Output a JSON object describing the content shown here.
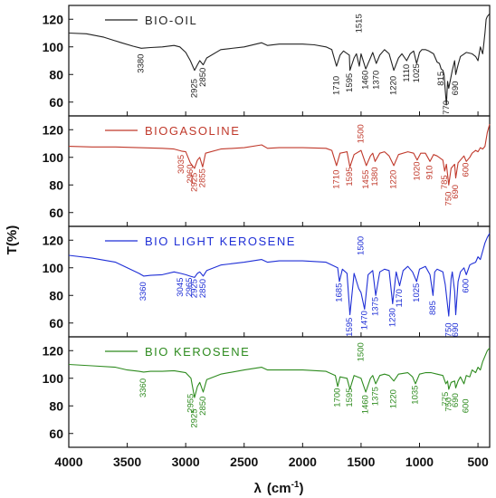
{
  "chart_data": {
    "type": "line",
    "ylabel": "T(%)",
    "xlabel_lambda": "λ",
    "xlabel_unit_open": "(cm",
    "xlabel_unit_exp": "-1",
    "xlabel_unit_close": ")",
    "xlim": [
      4000,
      400
    ],
    "x_ticks": [
      4000,
      3500,
      3000,
      2500,
      2000,
      1500,
      1000,
      500
    ],
    "panels": [
      {
        "name": "BIO-OIL",
        "color": "#222222",
        "ylim": [
          50,
          130
        ],
        "y_ticks": [
          60,
          80,
          100,
          120
        ],
        "x": [
          4000,
          3850,
          3700,
          3550,
          3450,
          3380,
          3300,
          3200,
          3100,
          3050,
          3000,
          2960,
          2925,
          2900,
          2880,
          2850,
          2820,
          2700,
          2500,
          2350,
          2300,
          2200,
          2000,
          1900,
          1800,
          1750,
          1710,
          1680,
          1650,
          1600,
          1595,
          1560,
          1540,
          1515,
          1500,
          1460,
          1420,
          1400,
          1370,
          1340,
          1300,
          1260,
          1220,
          1180,
          1150,
          1110,
          1080,
          1050,
          1025,
          1000,
          980,
          950,
          920,
          900,
          880,
          850,
          830,
          815,
          800,
          790,
          770,
          760,
          750,
          720,
          700,
          690,
          670,
          650,
          600,
          550,
          520,
          500,
          480,
          460,
          450,
          440,
          430,
          420,
          400
        ],
        "y": [
          110,
          109.5,
          107,
          103,
          100.5,
          99,
          99.5,
          100,
          101,
          100,
          96,
          90,
          83,
          87,
          90,
          87,
          92,
          98,
          100,
          103,
          101,
          102,
          102,
          101.5,
          100,
          98,
          86,
          94,
          97,
          94,
          83,
          92,
          95,
          86,
          95,
          84,
          92,
          96,
          88,
          94,
          98,
          95,
          83,
          92,
          95,
          90,
          95,
          97,
          88,
          96,
          98,
          98,
          97,
          96,
          95,
          89,
          88,
          84,
          83,
          80,
          58,
          75,
          70,
          83,
          90,
          80,
          87,
          93,
          96,
          95,
          93,
          90,
          100,
          95,
          102,
          110,
          120,
          122,
          124
        ],
        "peak_labels": [
          {
            "label": "3380",
            "x": 3380,
            "y": 88
          },
          {
            "label": "2925",
            "x": 2925,
            "y": 70
          },
          {
            "label": "2850",
            "x": 2850,
            "y": 78
          },
          {
            "label": "1710",
            "x": 1710,
            "y": 72
          },
          {
            "label": "1595",
            "x": 1595,
            "y": 74
          },
          {
            "label": "1460",
            "x": 1460,
            "y": 76
          },
          {
            "label": "1515",
            "x": 1515,
            "y": 117
          },
          {
            "label": "1370",
            "x": 1370,
            "y": 76
          },
          {
            "label": "1220",
            "x": 1220,
            "y": 72
          },
          {
            "label": "1110",
            "x": 1110,
            "y": 81
          },
          {
            "label": "1025",
            "x": 1025,
            "y": 81
          },
          {
            "label": "815",
            "x": 815,
            "y": 77
          },
          {
            "label": "770",
            "x": 770,
            "y": 56
          },
          {
            "label": "690",
            "x": 690,
            "y": 70
          }
        ]
      },
      {
        "name": "BIOGASOLINE",
        "color": "#c0392b",
        "ylim": [
          50,
          130
        ],
        "y_ticks": [
          60,
          80,
          100,
          120
        ],
        "x": [
          4000,
          3800,
          3600,
          3400,
          3200,
          3100,
          3035,
          3000,
          2960,
          2925,
          2900,
          2880,
          2855,
          2830,
          2700,
          2500,
          2350,
          2300,
          2200,
          2000,
          1800,
          1750,
          1710,
          1680,
          1620,
          1595,
          1560,
          1500,
          1455,
          1420,
          1400,
          1380,
          1340,
          1300,
          1260,
          1220,
          1180,
          1100,
          1050,
          1020,
          990,
          950,
          910,
          880,
          850,
          800,
          785,
          770,
          750,
          730,
          700,
          690,
          670,
          650,
          620,
          600,
          570,
          550,
          520,
          500,
          480,
          460,
          440,
          420,
          400
        ],
        "y": [
          108,
          107.5,
          107.5,
          107,
          106.5,
          106,
          104.5,
          104,
          96,
          92,
          98,
          100,
          93,
          103,
          106,
          107,
          109,
          106.5,
          107,
          107,
          106.5,
          105,
          94,
          103,
          104,
          93,
          102,
          105,
          94,
          101,
          103,
          97,
          103,
          104,
          101,
          94,
          102,
          104,
          103,
          98,
          103,
          103,
          97,
          102,
          101,
          98,
          90,
          95,
          80,
          92,
          95,
          85,
          96,
          98,
          101,
          97,
          100,
          103,
          105,
          104,
          107,
          106,
          108,
          118,
          124
        ],
        "peak_labels": [
          {
            "label": "3035",
            "x": 3035,
            "y": 95
          },
          {
            "label": "2960",
            "x": 2960,
            "y": 88
          },
          {
            "label": "2925",
            "x": 2925,
            "y": 82
          },
          {
            "label": "2855",
            "x": 2855,
            "y": 85
          },
          {
            "label": "1710",
            "x": 1710,
            "y": 84
          },
          {
            "label": "1595",
            "x": 1595,
            "y": 86
          },
          {
            "label": "1455",
            "x": 1455,
            "y": 84
          },
          {
            "label": "1500",
            "x": 1500,
            "y": 117
          },
          {
            "label": "1380",
            "x": 1380,
            "y": 86
          },
          {
            "label": "1220",
            "x": 1220,
            "y": 84
          },
          {
            "label": "1020",
            "x": 1020,
            "y": 90
          },
          {
            "label": "910",
            "x": 910,
            "y": 89
          },
          {
            "label": "785",
            "x": 785,
            "y": 82
          },
          {
            "label": "750",
            "x": 750,
            "y": 70
          },
          {
            "label": "690",
            "x": 690,
            "y": 75
          },
          {
            "label": "600",
            "x": 600,
            "y": 91
          }
        ]
      },
      {
        "name": "BIO LIGHT KEROSENE",
        "color": "#1f2fd6",
        "ylim": [
          50,
          130
        ],
        "y_ticks": [
          60,
          80,
          100,
          120
        ],
        "x": [
          4000,
          3800,
          3600,
          3500,
          3400,
          3360,
          3300,
          3200,
          3100,
          3045,
          3000,
          2965,
          2925,
          2900,
          2880,
          2850,
          2820,
          2700,
          2500,
          2350,
          2300,
          2200,
          2000,
          1800,
          1700,
          1685,
          1660,
          1620,
          1595,
          1560,
          1520,
          1500,
          1470,
          1440,
          1400,
          1375,
          1340,
          1300,
          1260,
          1230,
          1200,
          1170,
          1140,
          1100,
          1060,
          1025,
          1000,
          950,
          910,
          885,
          870,
          850,
          800,
          780,
          750,
          730,
          720,
          700,
          690,
          670,
          650,
          620,
          600,
          570,
          550,
          520,
          500,
          480,
          460,
          440,
          420,
          400
        ],
        "y": [
          109,
          107,
          104,
          100,
          96,
          94,
          94.5,
          95,
          97,
          96,
          95,
          94,
          93,
          96,
          97,
          94,
          98,
          102,
          104,
          106,
          104,
          105,
          105,
          104,
          100,
          90,
          99,
          96,
          66,
          96,
          85,
          82,
          70,
          95,
          98,
          80,
          97,
          99,
          98,
          74,
          97,
          87,
          98,
          101,
          97,
          90,
          99,
          101,
          95,
          80,
          97,
          99,
          97,
          88,
          65,
          92,
          97,
          83,
          66,
          90,
          97,
          100,
          95,
          102,
          103,
          104,
          108,
          106,
          112,
          118,
          122,
          125
        ],
        "peak_labels": [
          {
            "label": "3360",
            "x": 3360,
            "y": 83
          },
          {
            "label": "3045",
            "x": 3045,
            "y": 86
          },
          {
            "label": "2965",
            "x": 2965,
            "y": 86
          },
          {
            "label": "2925",
            "x": 2925,
            "y": 85
          },
          {
            "label": "2850",
            "x": 2850,
            "y": 85
          },
          {
            "label": "1685",
            "x": 1685,
            "y": 82
          },
          {
            "label": "1595",
            "x": 1595,
            "y": 57
          },
          {
            "label": "1500",
            "x": 1500,
            "y": 116
          },
          {
            "label": "1470",
            "x": 1470,
            "y": 62
          },
          {
            "label": "1375",
            "x": 1375,
            "y": 72
          },
          {
            "label": "1230",
            "x": 1230,
            "y": 64
          },
          {
            "label": "1170",
            "x": 1170,
            "y": 78
          },
          {
            "label": "1025",
            "x": 1025,
            "y": 82
          },
          {
            "label": "885",
            "x": 885,
            "y": 71
          },
          {
            "label": "750",
            "x": 750,
            "y": 55
          },
          {
            "label": "690",
            "x": 690,
            "y": 55
          },
          {
            "label": "600",
            "x": 600,
            "y": 87
          }
        ]
      },
      {
        "name": "BIO KEROSENE",
        "color": "#2e8b1f",
        "ylim": [
          50,
          130
        ],
        "y_ticks": [
          60,
          80,
          100,
          120
        ],
        "x": [
          4000,
          3800,
          3600,
          3500,
          3400,
          3360,
          3300,
          3200,
          3100,
          3000,
          2955,
          2925,
          2900,
          2880,
          2850,
          2820,
          2700,
          2500,
          2350,
          2300,
          2200,
          2000,
          1800,
          1720,
          1700,
          1680,
          1620,
          1595,
          1560,
          1500,
          1460,
          1420,
          1400,
          1375,
          1340,
          1300,
          1260,
          1220,
          1180,
          1100,
          1060,
          1035,
          1000,
          950,
          900,
          850,
          800,
          775,
          760,
          750,
          730,
          700,
          690,
          670,
          650,
          620,
          600,
          570,
          550,
          520,
          500,
          480,
          460,
          440,
          420,
          400
        ],
        "y": [
          110,
          109,
          108,
          106,
          105,
          104.5,
          105,
          105,
          105.5,
          104,
          100,
          86,
          94,
          97,
          90,
          99,
          103,
          106,
          108,
          106,
          106,
          106,
          105,
          102,
          94,
          101,
          100,
          92,
          102,
          100,
          90,
          100,
          102,
          96,
          102,
          103,
          102,
          98,
          103,
          104,
          101,
          96,
          103,
          104,
          104,
          103,
          102,
          96,
          98,
          92,
          97,
          98,
          93,
          98,
          101,
          96,
          102,
          101,
          106,
          104,
          108,
          106,
          112,
          116,
          120,
          122
        ],
        "peak_labels": [
          {
            "label": "3360",
            "x": 3360,
            "y": 93
          },
          {
            "label": "2955",
            "x": 2955,
            "y": 82
          },
          {
            "label": "2925",
            "x": 2925,
            "y": 71
          },
          {
            "label": "2850",
            "x": 2850,
            "y": 80
          },
          {
            "label": "1700",
            "x": 1700,
            "y": 86
          },
          {
            "label": "1595",
            "x": 1595,
            "y": 86
          },
          {
            "label": "1500",
            "x": 1500,
            "y": 119
          },
          {
            "label": "1460",
            "x": 1460,
            "y": 81
          },
          {
            "label": "1375",
            "x": 1375,
            "y": 87
          },
          {
            "label": "1220",
            "x": 1220,
            "y": 85
          },
          {
            "label": "1035",
            "x": 1035,
            "y": 88
          },
          {
            "label": "775",
            "x": 775,
            "y": 85
          },
          {
            "label": "750",
            "x": 750,
            "y": 81
          },
          {
            "label": "690",
            "x": 690,
            "y": 84
          },
          {
            "label": "600",
            "x": 600,
            "y": 80
          }
        ]
      }
    ]
  }
}
